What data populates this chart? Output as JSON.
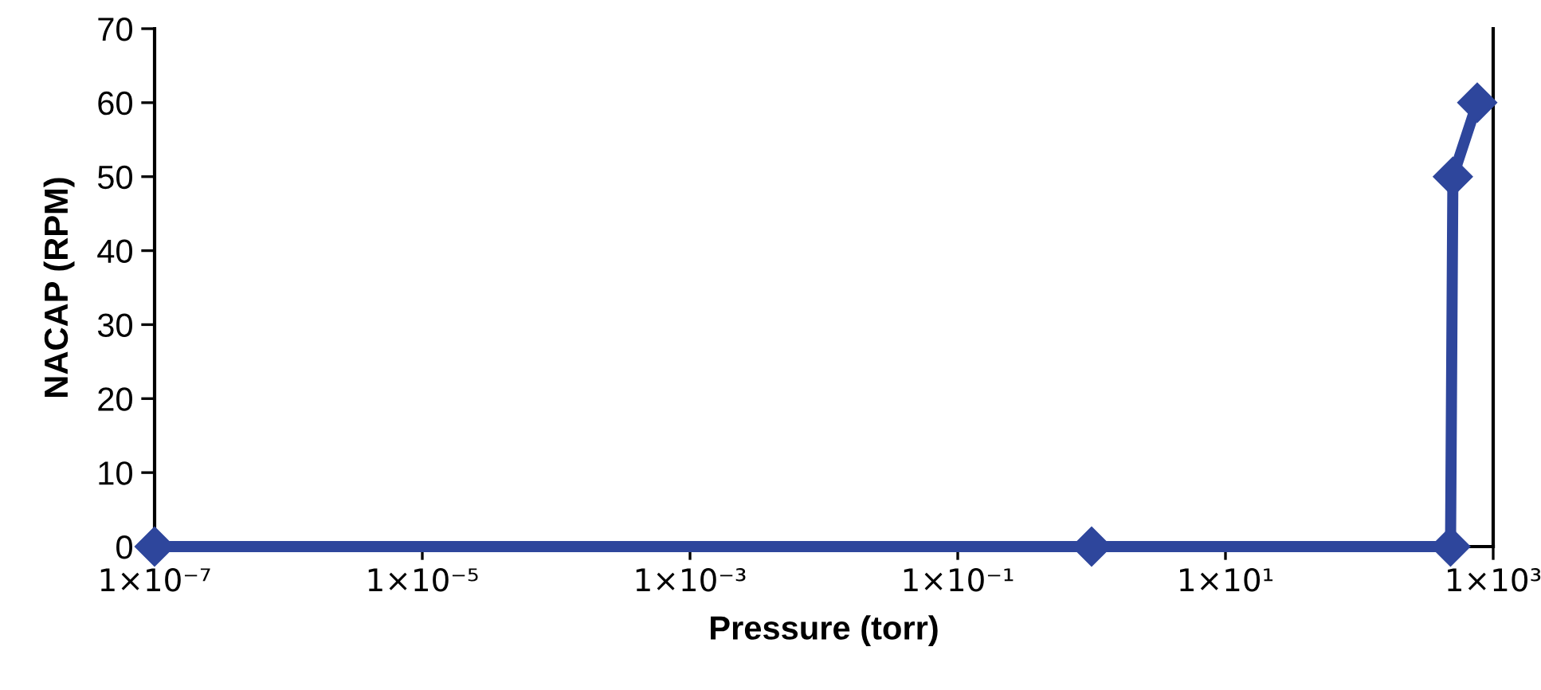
{
  "chart_data": {
    "type": "line",
    "xlabel": "Pressure (torr)",
    "ylabel": "NACAP (RPM)",
    "log": "x",
    "grid": false,
    "marker": "diamond",
    "line_style": "solid",
    "series": [
      {
        "color": "#2e469c",
        "x": [
          1e-07,
          1,
          480,
          500,
          760
        ],
        "values": [
          0,
          0,
          0,
          50,
          60
        ]
      }
    ],
    "xlim": [
      1e-07,
      1000
    ],
    "xticks": [
      {
        "value": 1e-07,
        "label": "1×10⁻⁷"
      },
      {
        "value": 1e-05,
        "label": "1×10⁻⁵"
      },
      {
        "value": 0.001,
        "label": "1×10⁻³"
      },
      {
        "value": 0.1,
        "label": "1×10⁻¹"
      },
      {
        "value": 10,
        "label": "1×10¹"
      },
      {
        "value": 1000,
        "label": "1×10³"
      }
    ],
    "ylim": [
      0,
      70
    ],
    "yticks": [
      0,
      10,
      20,
      30,
      40,
      50,
      60,
      70
    ]
  }
}
